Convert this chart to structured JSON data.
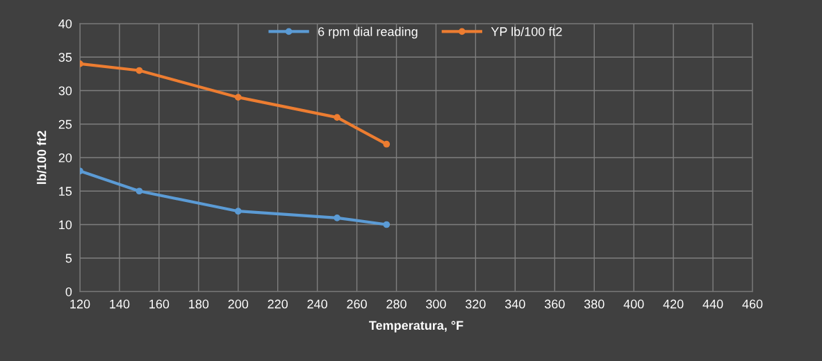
{
  "chart_data": {
    "type": "line",
    "xlabel": "Temperatura, °F",
    "ylabel": "lb/100 ft2",
    "x": [
      120,
      150,
      200,
      250,
      275
    ],
    "series": [
      {
        "name": "6 rpm dial reading",
        "color": "#5b9bd5",
        "values": [
          18,
          15,
          12,
          11,
          10
        ]
      },
      {
        "name": "YP lb/100 ft2",
        "color": "#ed7d31",
        "values": [
          34,
          33,
          29,
          26,
          22
        ]
      }
    ],
    "xlim": [
      120,
      460
    ],
    "xticks": [
      120,
      140,
      160,
      180,
      200,
      220,
      240,
      260,
      280,
      300,
      320,
      340,
      360,
      380,
      400,
      420,
      440,
      460
    ],
    "ylim": [
      0,
      40
    ],
    "yticks": [
      0,
      5,
      10,
      15,
      20,
      25,
      30,
      35,
      40
    ],
    "grid": true,
    "legend": "top",
    "marker": "circle",
    "line_style": "solid"
  }
}
